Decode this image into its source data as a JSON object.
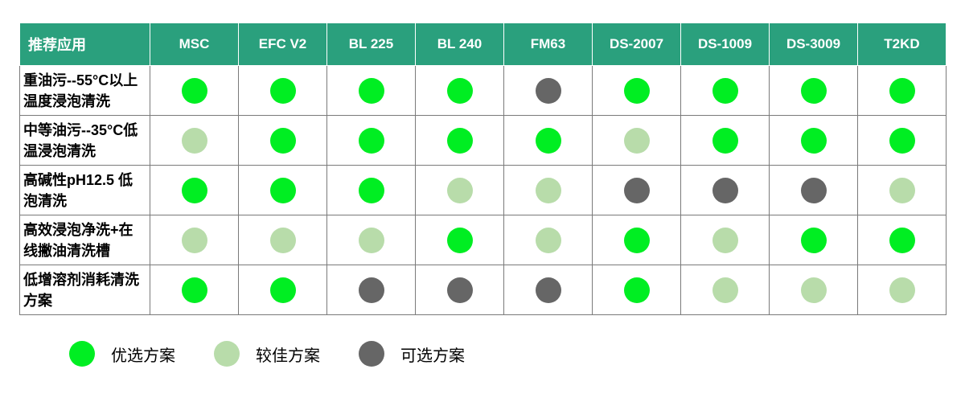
{
  "header_title": "推荐应用",
  "colors": {
    "preferred": "#00ee22",
    "better": "#b8dcaa",
    "optional": "#666666"
  },
  "columns": [
    "MSC",
    "EFC V2",
    "BL 225",
    "BL 240",
    "FM63",
    "DS-2007",
    "DS-1009",
    "DS-3009",
    "T2KD"
  ],
  "rows": [
    {
      "label": "重油污--55°C以上温度浸泡清洗",
      "ratings": [
        "preferred",
        "preferred",
        "preferred",
        "preferred",
        "optional",
        "preferred",
        "preferred",
        "preferred",
        "preferred"
      ]
    },
    {
      "label": "中等油污--35°C低温浸泡清洗",
      "ratings": [
        "better",
        "preferred",
        "preferred",
        "preferred",
        "preferred",
        "better",
        "preferred",
        "preferred",
        "preferred"
      ]
    },
    {
      "label": "高碱性pH12.5 低泡清洗",
      "ratings": [
        "preferred",
        "preferred",
        "preferred",
        "better",
        "better",
        "optional",
        "optional",
        "optional",
        "better"
      ]
    },
    {
      "label": "高效浸泡净洗+在线撇油清洗槽",
      "ratings": [
        "better",
        "better",
        "better",
        "preferred",
        "better",
        "preferred",
        "better",
        "preferred",
        "preferred"
      ]
    },
    {
      "label": "低增溶剂消耗清洗方案",
      "ratings": [
        "preferred",
        "preferred",
        "optional",
        "optional",
        "optional",
        "preferred",
        "better",
        "better",
        "better"
      ]
    }
  ],
  "legend": [
    {
      "key": "preferred",
      "label": "优选方案"
    },
    {
      "key": "better",
      "label": "较佳方案"
    },
    {
      "key": "optional",
      "label": "可选方案"
    }
  ]
}
